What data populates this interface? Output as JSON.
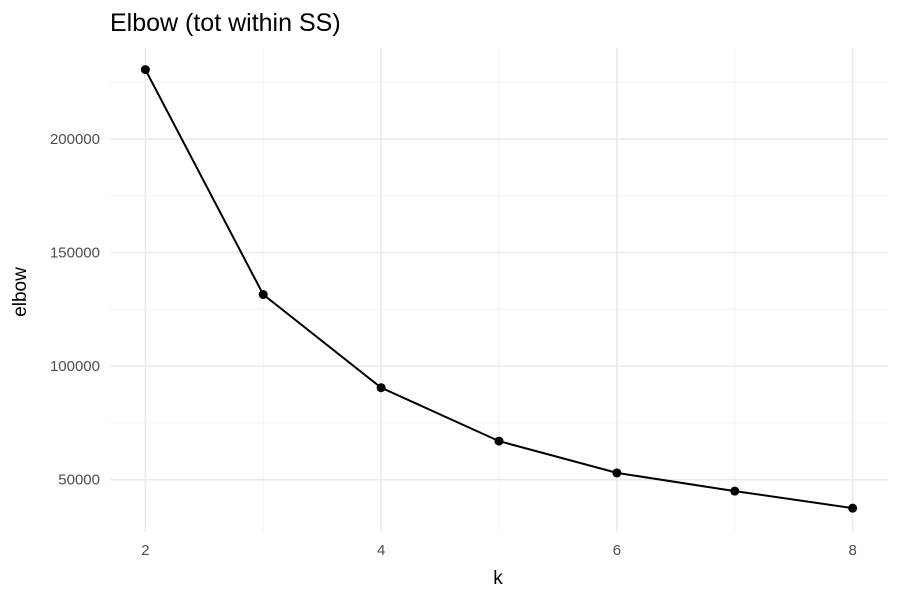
{
  "chart_data": {
    "type": "line",
    "title": "Elbow (tot within SS)",
    "xlabel": "k",
    "ylabel": "elbow",
    "x": [
      2,
      3,
      4,
      5,
      6,
      7,
      8
    ],
    "series": [
      {
        "values": [
          230500,
          131500,
          90500,
          67000,
          53000,
          45000,
          37500
        ]
      }
    ],
    "xlim": [
      1.7,
      8.3
    ],
    "ylim": [
      27000,
      240000
    ],
    "x_ticks": [
      2,
      4,
      6,
      8
    ],
    "x_minor_ticks": [
      3,
      5,
      7
    ],
    "y_ticks": [
      50000,
      100000,
      150000,
      200000
    ],
    "y_minor_ticks": [
      75000,
      125000,
      175000,
      225000
    ],
    "grid": true,
    "legend": "none",
    "line_color": "#000000",
    "point_color": "#000000",
    "grid_color": "#ebebeb"
  }
}
